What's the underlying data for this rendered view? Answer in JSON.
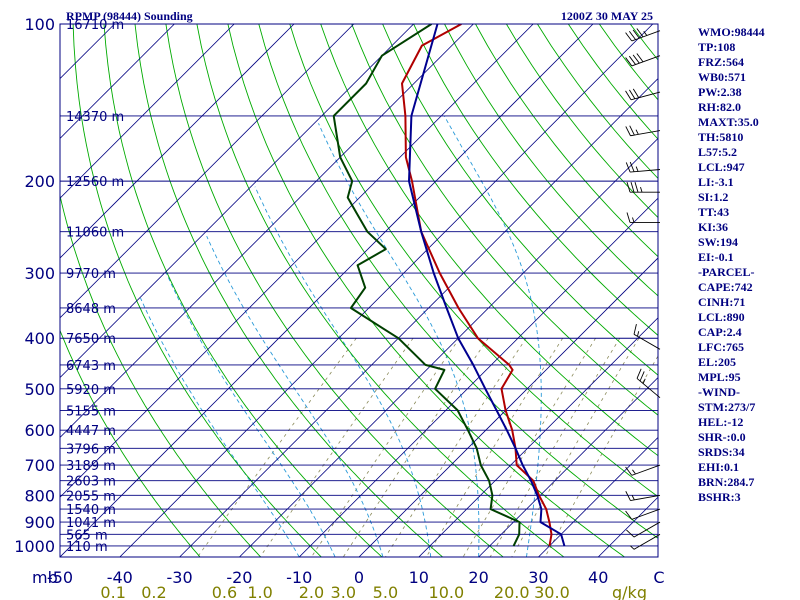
{
  "header": {
    "title": "RPMP (98444) Sounding",
    "time": "1200Z 30 MAY 25"
  },
  "chart_data": {
    "type": "line",
    "diagram": "skew-T log-P",
    "x_unit": "C",
    "y_unit": "mb",
    "pressure_ticks": [
      "100",
      "200",
      "300",
      "400",
      "500",
      "600",
      "700",
      "800",
      "900",
      "1000"
    ],
    "pressure_values": [
      100,
      200,
      300,
      400,
      500,
      600,
      700,
      800,
      900,
      1000
    ],
    "temperature_ticks": [
      "-50",
      "-40",
      "-30",
      "-20",
      "-10",
      "0",
      "10",
      "20",
      "30",
      "40"
    ],
    "temperature_values": [
      -50,
      -40,
      -30,
      -20,
      -10,
      0,
      10,
      20,
      30,
      40
    ],
    "mixing_ratio_unit": "g/kg",
    "mixing_ratio_ticks": [
      "0.1",
      "0.2",
      "0.6",
      "1.0",
      "2.0",
      "3.0",
      "5.0",
      "10.0",
      "20.0",
      "30.0"
    ],
    "mixing_ratio_values": [
      0.1,
      0.2,
      0.6,
      1.0,
      2.0,
      3.0,
      5.0,
      10.0,
      20.0,
      30.0
    ],
    "height_levels": [
      {
        "p": 100,
        "label": "16710 m"
      },
      {
        "p": 150,
        "label": "14370 m"
      },
      {
        "p": 200,
        "label": "12560 m"
      },
      {
        "p": 250,
        "label": "11060 m"
      },
      {
        "p": 300,
        "label": "9770 m"
      },
      {
        "p": 350,
        "label": "8648 m"
      },
      {
        "p": 400,
        "label": "7650 m"
      },
      {
        "p": 450,
        "label": "6743 m"
      },
      {
        "p": 500,
        "label": "5920 m"
      },
      {
        "p": 550,
        "label": "5155 m"
      },
      {
        "p": 600,
        "label": "4447 m"
      },
      {
        "p": 650,
        "label": "3796 m"
      },
      {
        "p": 700,
        "label": "3189 m"
      },
      {
        "p": 750,
        "label": "2603 m"
      },
      {
        "p": 800,
        "label": "2055 m"
      },
      {
        "p": 850,
        "label": "1540 m"
      },
      {
        "p": 900,
        "label": "1041 m"
      },
      {
        "p": 950,
        "label": "565 m"
      },
      {
        "p": 1000,
        "label": "110 m"
      }
    ],
    "series": [
      {
        "color": "#b00000",
        "points": [
          [
            100,
            -72
          ],
          [
            110,
            -75
          ],
          [
            130,
            -72
          ],
          [
            150,
            -66
          ],
          [
            180,
            -59
          ],
          [
            200,
            -54
          ],
          [
            250,
            -44
          ],
          [
            300,
            -34
          ],
          [
            350,
            -25
          ],
          [
            400,
            -16.7
          ],
          [
            450,
            -7
          ],
          [
            460,
            -5.6
          ],
          [
            500,
            -4.3
          ],
          [
            550,
            0
          ],
          [
            600,
            4.4
          ],
          [
            650,
            8
          ],
          [
            700,
            11
          ],
          [
            750,
            16.4
          ],
          [
            800,
            19.8
          ],
          [
            850,
            23.3
          ],
          [
            900,
            26
          ],
          [
            950,
            28.4
          ],
          [
            1000,
            30
          ]
        ]
      },
      {
        "color": "#004000",
        "points": [
          [
            100,
            -77
          ],
          [
            115,
            -80
          ],
          [
            130,
            -78
          ],
          [
            150,
            -78
          ],
          [
            180,
            -70
          ],
          [
            200,
            -64
          ],
          [
            215,
            -62
          ],
          [
            230,
            -58
          ],
          [
            250,
            -53
          ],
          [
            270,
            -47
          ],
          [
            290,
            -49
          ],
          [
            320,
            -44
          ],
          [
            350,
            -43
          ],
          [
            400,
            -30
          ],
          [
            450,
            -21
          ],
          [
            460,
            -17
          ],
          [
            500,
            -15.4
          ],
          [
            550,
            -8
          ],
          [
            600,
            -3
          ],
          [
            650,
            1.5
          ],
          [
            700,
            5
          ],
          [
            750,
            9
          ],
          [
            800,
            12
          ],
          [
            850,
            14
          ],
          [
            900,
            21
          ],
          [
            950,
            23
          ],
          [
            1000,
            24
          ]
        ]
      },
      {
        "color": "#000090",
        "points": [
          [
            100,
            -76
          ],
          [
            150,
            -65
          ],
          [
            200,
            -54.5
          ],
          [
            250,
            -44
          ],
          [
            300,
            -35
          ],
          [
            350,
            -27
          ],
          [
            400,
            -20
          ],
          [
            450,
            -13
          ],
          [
            500,
            -7
          ],
          [
            550,
            -1.5
          ],
          [
            600,
            3.5
          ],
          [
            650,
            8
          ],
          [
            700,
            12
          ],
          [
            750,
            16
          ],
          [
            800,
            19.5
          ],
          [
            850,
            22.5
          ],
          [
            900,
            24.5
          ],
          [
            950,
            30
          ],
          [
            1000,
            32.5
          ]
        ]
      }
    ]
  },
  "indices": [
    "WMO:98444",
    "TP:108",
    "FRZ:564",
    "WB0:571",
    "PW:2.38",
    "RH:82.0",
    "MAXT:35.0",
    "TH:5810",
    "L57:5.2",
    "LCL:947",
    "LI:-3.1",
    "SI:1.2",
    "TT:43",
    "KI:36",
    "SW:194",
    "EI:-0.1",
    "-PARCEL-",
    "CAPE:742",
    "CINH:71",
    "LCL:890",
    "CAP:2.4",
    "LFC:765",
    "EL:205",
    "MPL:95",
    "-WIND-",
    "STM:273/7",
    "HEL:-12",
    "SHR-:0.0",
    "SRDS:34",
    "EHI:0.1",
    "BRN:284.7",
    "BSHR:3"
  ],
  "wind_profile": [
    {
      "p": 103,
      "dir": 250,
      "spd": 45
    },
    {
      "p": 115,
      "dir": 250,
      "spd": 40
    },
    {
      "p": 135,
      "dir": 255,
      "spd": 30
    },
    {
      "p": 160,
      "dir": 260,
      "spd": 25
    },
    {
      "p": 190,
      "dir": 265,
      "spd": 25
    },
    {
      "p": 210,
      "dir": 270,
      "spd": 35
    },
    {
      "p": 240,
      "dir": 270,
      "spd": 15
    },
    {
      "p": 420,
      "dir": 300,
      "spd": 15
    },
    {
      "p": 520,
      "dir": 310,
      "spd": 25
    },
    {
      "p": 700,
      "dir": 250,
      "spd": 15
    },
    {
      "p": 800,
      "dir": 260,
      "spd": 15
    },
    {
      "p": 850,
      "dir": 250,
      "spd": 10
    },
    {
      "p": 900,
      "dir": 240,
      "spd": 10
    },
    {
      "p": 950,
      "dir": 240,
      "spd": 5
    }
  ],
  "colors": {
    "axes": "#000080",
    "isotherms": "#000080",
    "dry_adiabats": "#00aa00",
    "moist_adiabats": "#008080",
    "mixing_ratio": "#2a9ad8",
    "saturation": "#8a8a5a"
  }
}
